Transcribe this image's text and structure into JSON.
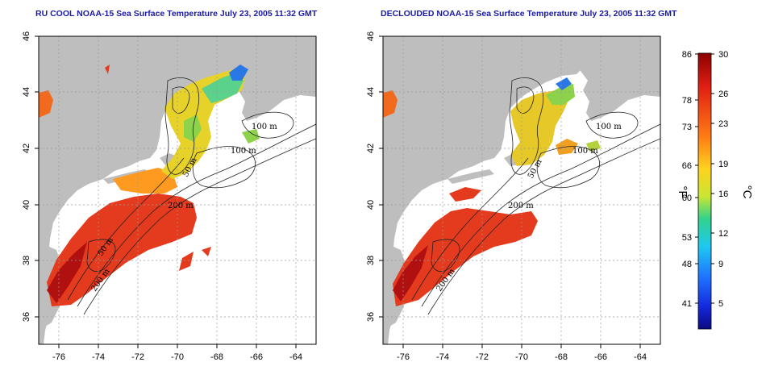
{
  "maps": [
    {
      "title": "RU COOL NOAA-15 Sea Surface Temperature July 23, 2005 11:32 GMT",
      "contour_labels": [
        "100 m",
        "100 m",
        "50 m",
        "200 m",
        "200 m",
        "50 m"
      ]
    },
    {
      "title": "DECLOUDED NOAA-15 Sea Surface Temperature July 23, 2005 11:32 GMT",
      "contour_labels": [
        "100 m",
        "100 m",
        "50 m",
        "200 m",
        "200 m"
      ]
    }
  ],
  "axes": {
    "x_ticks": [
      "-76",
      "-74",
      "-72",
      "-70",
      "-68",
      "-66",
      "-64"
    ],
    "y_ticks": [
      "46",
      "44",
      "42",
      "40",
      "38",
      "36"
    ],
    "xlim": [
      -77,
      -63
    ],
    "ylim": [
      35,
      46
    ]
  },
  "colorbar": {
    "f_label": "°F",
    "c_label": "°C",
    "f_ticks": [
      "86",
      "78",
      "73",
      "66",
      "60",
      "53",
      "48",
      "41"
    ],
    "c_ticks": [
      "30",
      "26",
      "23",
      "19",
      "16",
      "12",
      "9",
      "5"
    ],
    "range_c": [
      2,
      30
    ],
    "colors": {
      "hot": "#8b0000",
      "warm": "#e8321e",
      "mid": "#ffd21e",
      "cool": "#32cd96",
      "cold": "#1e64ff",
      "coldest": "#0a0a82"
    }
  },
  "land_color": "#bebebe",
  "grid_color": "#9a9a9a"
}
